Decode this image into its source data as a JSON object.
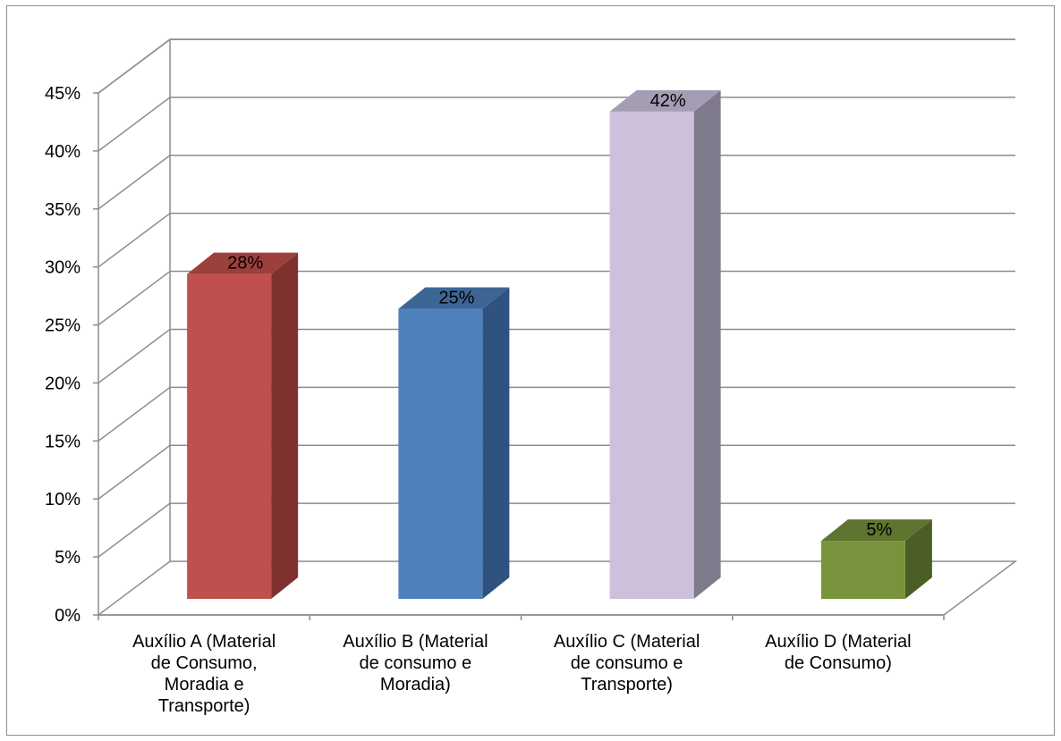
{
  "chart_data": {
    "type": "bar",
    "style": "3d-column",
    "categories": [
      [
        "Auxílio A (Material",
        "de Consumo,",
        "Moradia e",
        "Transporte)"
      ],
      [
        "Auxílio B (Material",
        "de consumo e",
        "Moradia)"
      ],
      [
        "Auxílio C (Material",
        "de consumo e",
        "Transporte)"
      ],
      [
        "Auxílio D (Material",
        "de Consumo)"
      ]
    ],
    "values": [
      28,
      25,
      42,
      5
    ],
    "data_labels": [
      "28%",
      "25%",
      "42%",
      "5%"
    ],
    "ylim": [
      0,
      45
    ],
    "yticks": [
      "0%",
      "5%",
      "10%",
      "15%",
      "20%",
      "25%",
      "30%",
      "35%",
      "40%",
      "45%"
    ],
    "grid": true,
    "legend": "none",
    "colors": {
      "front": [
        "#c0504d",
        "#4f81bd",
        "#ccc0da",
        "#77933c"
      ],
      "side": [
        "#7f3130",
        "#30527f",
        "#7f7a8c",
        "#4b5e26"
      ],
      "top": [
        "#9c403d",
        "#3e6695",
        "#a59db3",
        "#5e752f"
      ]
    }
  }
}
